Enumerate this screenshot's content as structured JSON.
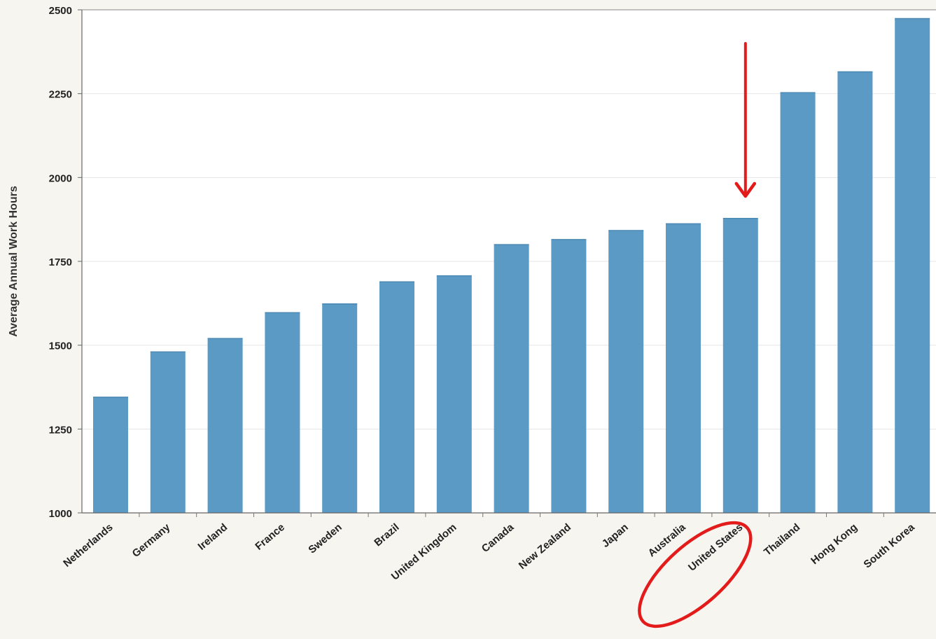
{
  "chart_data": {
    "type": "bar",
    "title": "",
    "xlabel": "",
    "ylabel": "Average Annual Work Hours",
    "ylim": [
      1000,
      2500
    ],
    "yticks": [
      1000,
      1250,
      1500,
      1750,
      2000,
      2250,
      2500
    ],
    "categories": [
      "Netherlands",
      "Germany",
      "Ireland",
      "France",
      "Sweden",
      "Brazil",
      "United Kingdom",
      "Canada",
      "New Zealand",
      "Japan",
      "Australia",
      "United States",
      "Thailand",
      "Hong Kong",
      "South Korea"
    ],
    "values": [
      1345,
      1480,
      1520,
      1597,
      1623,
      1689,
      1707,
      1800,
      1815,
      1842,
      1862,
      1878,
      2253,
      2315,
      2474
    ],
    "grid": true,
    "bar_color": "#5a9ac5",
    "highlight": {
      "category": "United States",
      "annotation": "red arrow above bar and red ellipse circling tick label",
      "color": "#e31b1b"
    }
  }
}
